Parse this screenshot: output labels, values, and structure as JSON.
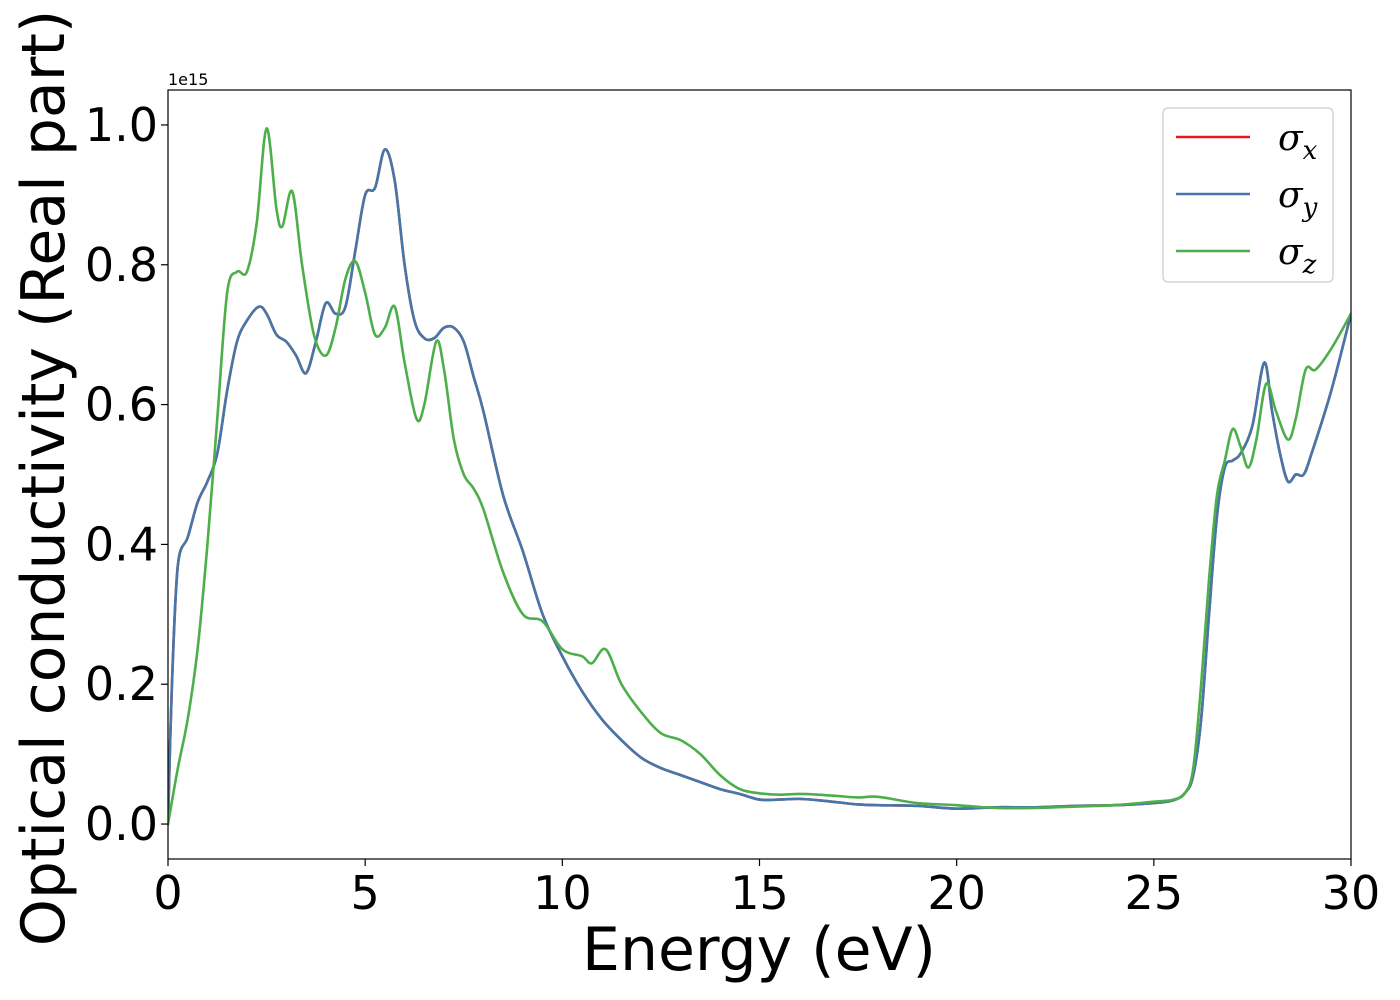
{
  "chart_data": {
    "type": "line",
    "xlabel": "Energy (eV)",
    "ylabel": "Optical conductivity (Real part)",
    "y_offset_label": "1e15",
    "xlim": [
      0,
      30
    ],
    "ylim": [
      -0.05,
      1.05
    ],
    "x_ticks": [
      0,
      5,
      10,
      15,
      20,
      25,
      30
    ],
    "x_tick_labels": [
      "0",
      "5",
      "10",
      "15",
      "20",
      "25",
      "30"
    ],
    "y_ticks": [
      0.0,
      0.2,
      0.4,
      0.6,
      0.8,
      1.0
    ],
    "y_tick_labels": [
      "0.0",
      "0.2",
      "0.4",
      "0.6",
      "0.8",
      "1.0"
    ],
    "grid": false,
    "legend_position": "top-right",
    "series": [
      {
        "name": "σ",
        "subscript": "x",
        "color": "#e41a1c",
        "x": [
          0,
          0.1,
          0.25,
          0.5,
          0.75,
          1.0,
          1.25,
          1.5,
          1.75,
          2.0,
          2.3,
          2.5,
          2.75,
          3.0,
          3.25,
          3.5,
          3.75,
          4.0,
          4.25,
          4.5,
          4.75,
          5.0,
          5.25,
          5.5,
          5.75,
          6.0,
          6.25,
          6.5,
          6.75,
          7.0,
          7.25,
          7.5,
          7.75,
          8.0,
          8.5,
          9.0,
          9.5,
          10.0,
          10.5,
          11.0,
          11.5,
          12.0,
          12.5,
          13.0,
          13.5,
          14.0,
          14.5,
          15.0,
          15.5,
          16.0,
          16.5,
          17.0,
          17.5,
          18.0,
          19.0,
          20.0,
          21.0,
          22.0,
          23.0,
          24.0,
          25.0,
          25.5,
          25.8,
          26.0,
          26.2,
          26.4,
          26.6,
          26.8,
          27.0,
          27.2,
          27.5,
          27.8,
          28.0,
          28.2,
          28.4,
          28.6,
          28.8,
          29.0,
          29.5,
          30.0
        ],
        "values": [
          0.0,
          0.2,
          0.37,
          0.41,
          0.46,
          0.49,
          0.53,
          0.62,
          0.69,
          0.72,
          0.74,
          0.73,
          0.7,
          0.69,
          0.67,
          0.645,
          0.69,
          0.745,
          0.73,
          0.74,
          0.82,
          0.9,
          0.91,
          0.965,
          0.92,
          0.8,
          0.72,
          0.695,
          0.695,
          0.71,
          0.71,
          0.69,
          0.64,
          0.59,
          0.47,
          0.39,
          0.3,
          0.24,
          0.19,
          0.15,
          0.12,
          0.095,
          0.08,
          0.07,
          0.06,
          0.05,
          0.043,
          0.035,
          0.035,
          0.036,
          0.034,
          0.031,
          0.028,
          0.027,
          0.026,
          0.022,
          0.024,
          0.024,
          0.026,
          0.027,
          0.03,
          0.034,
          0.045,
          0.07,
          0.15,
          0.3,
          0.44,
          0.51,
          0.52,
          0.53,
          0.57,
          0.66,
          0.59,
          0.53,
          0.49,
          0.5,
          0.5,
          0.53,
          0.62,
          0.73
        ]
      },
      {
        "name": "σ",
        "subscript": "y",
        "color": "#4477aa",
        "x": [
          0,
          0.1,
          0.25,
          0.5,
          0.75,
          1.0,
          1.25,
          1.5,
          1.75,
          2.0,
          2.3,
          2.5,
          2.75,
          3.0,
          3.25,
          3.5,
          3.75,
          4.0,
          4.25,
          4.5,
          4.75,
          5.0,
          5.25,
          5.5,
          5.75,
          6.0,
          6.25,
          6.5,
          6.75,
          7.0,
          7.25,
          7.5,
          7.75,
          8.0,
          8.5,
          9.0,
          9.5,
          10.0,
          10.5,
          11.0,
          11.5,
          12.0,
          12.5,
          13.0,
          13.5,
          14.0,
          14.5,
          15.0,
          15.5,
          16.0,
          16.5,
          17.0,
          17.5,
          18.0,
          19.0,
          20.0,
          21.0,
          22.0,
          23.0,
          24.0,
          25.0,
          25.5,
          25.8,
          26.0,
          26.2,
          26.4,
          26.6,
          26.8,
          27.0,
          27.2,
          27.5,
          27.8,
          28.0,
          28.2,
          28.4,
          28.6,
          28.8,
          29.0,
          29.5,
          30.0
        ],
        "values": [
          0.0,
          0.2,
          0.37,
          0.41,
          0.46,
          0.49,
          0.53,
          0.62,
          0.69,
          0.72,
          0.74,
          0.73,
          0.7,
          0.69,
          0.67,
          0.645,
          0.69,
          0.745,
          0.73,
          0.74,
          0.82,
          0.9,
          0.91,
          0.965,
          0.92,
          0.8,
          0.72,
          0.695,
          0.695,
          0.71,
          0.71,
          0.69,
          0.64,
          0.59,
          0.47,
          0.39,
          0.3,
          0.24,
          0.19,
          0.15,
          0.12,
          0.095,
          0.08,
          0.07,
          0.06,
          0.05,
          0.043,
          0.035,
          0.035,
          0.036,
          0.034,
          0.031,
          0.028,
          0.027,
          0.026,
          0.022,
          0.024,
          0.024,
          0.026,
          0.027,
          0.03,
          0.034,
          0.045,
          0.07,
          0.15,
          0.3,
          0.44,
          0.51,
          0.52,
          0.53,
          0.57,
          0.66,
          0.59,
          0.53,
          0.49,
          0.5,
          0.5,
          0.53,
          0.62,
          0.73
        ]
      },
      {
        "name": "σ",
        "subscript": "z",
        "color": "#4daf4a",
        "x": [
          0,
          0.25,
          0.5,
          0.75,
          1.0,
          1.25,
          1.5,
          1.75,
          2.0,
          2.25,
          2.5,
          2.75,
          2.9,
          3.15,
          3.4,
          3.7,
          4.0,
          4.25,
          4.5,
          4.75,
          5.0,
          5.25,
          5.5,
          5.75,
          6.0,
          6.3,
          6.5,
          6.8,
          7.0,
          7.25,
          7.5,
          7.75,
          8.0,
          8.5,
          9.0,
          9.5,
          10.0,
          10.5,
          10.75,
          11.1,
          11.5,
          12.0,
          12.5,
          13.0,
          13.5,
          14.0,
          14.5,
          15.0,
          15.5,
          16.0,
          16.5,
          17.0,
          17.5,
          18.0,
          19.0,
          20.0,
          21.0,
          22.0,
          23.0,
          24.0,
          25.0,
          25.5,
          25.8,
          26.0,
          26.2,
          26.4,
          26.6,
          26.8,
          27.0,
          27.2,
          27.4,
          27.6,
          27.85,
          28.1,
          28.4,
          28.6,
          28.85,
          29.1,
          29.5,
          30.0
        ],
        "values": [
          0.0,
          0.08,
          0.15,
          0.25,
          0.4,
          0.58,
          0.76,
          0.79,
          0.79,
          0.86,
          0.995,
          0.88,
          0.855,
          0.905,
          0.8,
          0.7,
          0.67,
          0.71,
          0.78,
          0.805,
          0.76,
          0.7,
          0.71,
          0.74,
          0.66,
          0.58,
          0.6,
          0.69,
          0.65,
          0.55,
          0.5,
          0.48,
          0.45,
          0.36,
          0.3,
          0.29,
          0.25,
          0.24,
          0.23,
          0.25,
          0.2,
          0.16,
          0.13,
          0.12,
          0.1,
          0.07,
          0.05,
          0.044,
          0.042,
          0.043,
          0.042,
          0.04,
          0.038,
          0.039,
          0.03,
          0.027,
          0.023,
          0.023,
          0.025,
          0.027,
          0.032,
          0.035,
          0.045,
          0.08,
          0.2,
          0.35,
          0.47,
          0.52,
          0.565,
          0.54,
          0.51,
          0.55,
          0.63,
          0.59,
          0.55,
          0.58,
          0.65,
          0.65,
          0.68,
          0.73
        ]
      }
    ]
  }
}
